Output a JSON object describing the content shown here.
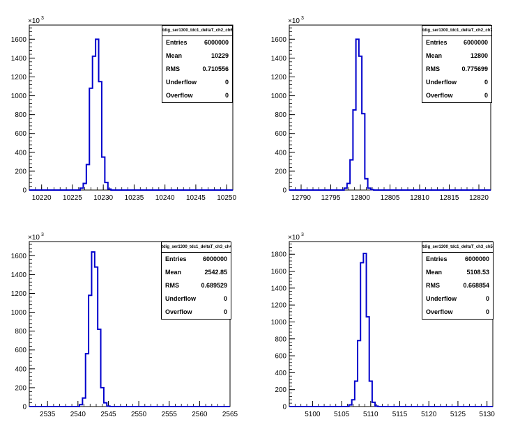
{
  "chart_data": [
    {
      "type": "histogram",
      "stat_title": "tdig_ser1300_tdc1_deltaT_ch2_ch6",
      "y_exponent_label": "×10",
      "y_exponent": "3",
      "xlim": [
        10218,
        10251
      ],
      "ylim": [
        0,
        1750
      ],
      "x_ticks": [
        10220,
        10225,
        10230,
        10235,
        10240,
        10245,
        10250
      ],
      "y_ticks": [
        0,
        200,
        400,
        600,
        800,
        1000,
        1200,
        1400,
        1600
      ],
      "bin_width": 0.5,
      "bins": [
        {
          "x": 10226.5,
          "y": 20
        },
        {
          "x": 10227.0,
          "y": 70
        },
        {
          "x": 10227.5,
          "y": 270
        },
        {
          "x": 10228.0,
          "y": 1080
        },
        {
          "x": 10228.5,
          "y": 1420
        },
        {
          "x": 10229.0,
          "y": 1600
        },
        {
          "x": 10229.5,
          "y": 1150
        },
        {
          "x": 10230.0,
          "y": 350
        },
        {
          "x": 10230.5,
          "y": 80
        },
        {
          "x": 10231.0,
          "y": 10
        }
      ],
      "stats": [
        {
          "label": "Entries",
          "value": "6000000"
        },
        {
          "label": "Mean",
          "value": "10229"
        },
        {
          "label": "RMS",
          "value": "0.710556"
        },
        {
          "label": "Underflow",
          "value": "0"
        },
        {
          "label": "Overflow",
          "value": "0"
        }
      ]
    },
    {
      "type": "histogram",
      "stat_title": "tdig_ser1300_tdc1_deltaT_ch2_ch7",
      "y_exponent_label": "×10",
      "y_exponent": "3",
      "xlim": [
        12788,
        12822
      ],
      "ylim": [
        0,
        1750
      ],
      "x_ticks": [
        12790,
        12795,
        12800,
        12805,
        12810,
        12815,
        12820
      ],
      "y_ticks": [
        0,
        200,
        400,
        600,
        800,
        1000,
        1200,
        1400,
        1600
      ],
      "bin_width": 0.5,
      "bins": [
        {
          "x": 12797.5,
          "y": 20
        },
        {
          "x": 12798.0,
          "y": 70
        },
        {
          "x": 12798.5,
          "y": 320
        },
        {
          "x": 12799.0,
          "y": 850
        },
        {
          "x": 12799.5,
          "y": 1600
        },
        {
          "x": 12800.0,
          "y": 1420
        },
        {
          "x": 12800.5,
          "y": 810
        },
        {
          "x": 12801.0,
          "y": 120
        },
        {
          "x": 12801.5,
          "y": 20
        },
        {
          "x": 12802.0,
          "y": 5
        }
      ],
      "stats": [
        {
          "label": "Entries",
          "value": "6000000"
        },
        {
          "label": "Mean",
          "value": "12800"
        },
        {
          "label": "RMS",
          "value": "0.775699"
        },
        {
          "label": "Underflow",
          "value": "0"
        },
        {
          "label": "Overflow",
          "value": "0"
        }
      ]
    },
    {
      "type": "histogram",
      "stat_title": "tdig_ser1300_tdc1_deltaT_ch3_ch4",
      "y_exponent_label": "×10",
      "y_exponent": "3",
      "xlim": [
        2532,
        2565
      ],
      "ylim": [
        0,
        1750
      ],
      "x_ticks": [
        2535,
        2540,
        2545,
        2550,
        2555,
        2560,
        2565
      ],
      "y_ticks": [
        0,
        200,
        400,
        600,
        800,
        1000,
        1200,
        1400,
        1600
      ],
      "bin_width": 0.5,
      "bins": [
        {
          "x": 2540.5,
          "y": 20
        },
        {
          "x": 2541.0,
          "y": 90
        },
        {
          "x": 2541.5,
          "y": 560
        },
        {
          "x": 2542.0,
          "y": 1180
        },
        {
          "x": 2542.5,
          "y": 1640
        },
        {
          "x": 2543.0,
          "y": 1480
        },
        {
          "x": 2543.5,
          "y": 820
        },
        {
          "x": 2544.0,
          "y": 200
        },
        {
          "x": 2544.5,
          "y": 40
        },
        {
          "x": 2545.0,
          "y": 5
        }
      ],
      "stats": [
        {
          "label": "Entries",
          "value": "6000000"
        },
        {
          "label": "Mean",
          "value": "2542.85"
        },
        {
          "label": "RMS",
          "value": "0.689529"
        },
        {
          "label": "Underflow",
          "value": "0"
        },
        {
          "label": "Overflow",
          "value": "0"
        }
      ]
    },
    {
      "type": "histogram",
      "stat_title": "tdig_ser1300_tdc1_deltaT_ch3_ch5",
      "y_exponent_label": "×10",
      "y_exponent": "3",
      "xlim": [
        5096,
        5131
      ],
      "ylim": [
        0,
        1950
      ],
      "x_ticks": [
        5100,
        5105,
        5110,
        5115,
        5120,
        5125,
        5130
      ],
      "y_ticks": [
        0,
        200,
        400,
        600,
        800,
        1000,
        1200,
        1400,
        1600,
        1800
      ],
      "bin_width": 0.5,
      "bins": [
        {
          "x": 5106.5,
          "y": 20
        },
        {
          "x": 5107.0,
          "y": 80
        },
        {
          "x": 5107.5,
          "y": 300
        },
        {
          "x": 5108.0,
          "y": 780
        },
        {
          "x": 5108.5,
          "y": 1700
        },
        {
          "x": 5109.0,
          "y": 1810
        },
        {
          "x": 5109.5,
          "y": 1060
        },
        {
          "x": 5110.0,
          "y": 300
        },
        {
          "x": 5110.5,
          "y": 50
        },
        {
          "x": 5111.0,
          "y": 5
        }
      ],
      "stats": [
        {
          "label": "Entries",
          "value": "6000000"
        },
        {
          "label": "Mean",
          "value": "5108.53"
        },
        {
          "label": "RMS",
          "value": "0.668854"
        },
        {
          "label": "Underflow",
          "value": "0"
        },
        {
          "label": "Overflow",
          "value": "0"
        }
      ]
    }
  ],
  "style": {
    "line_color": "#0000cc",
    "axis_color": "#000000",
    "background": "#ffffff"
  }
}
